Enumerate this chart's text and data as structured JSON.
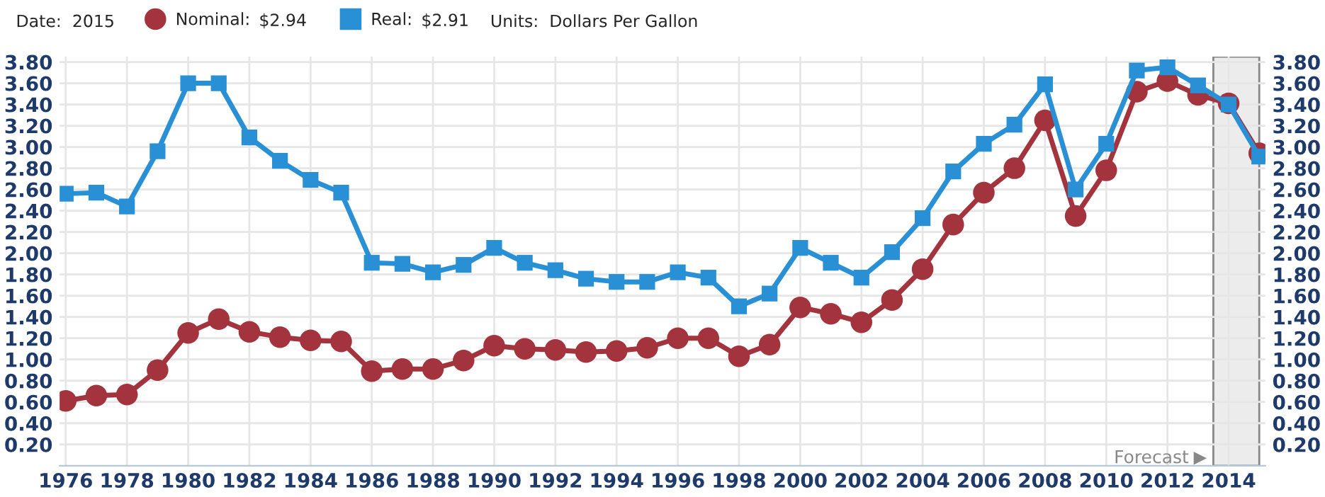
{
  "chart_data": {
    "type": "line",
    "x": [
      1976,
      1977,
      1978,
      1979,
      1980,
      1981,
      1982,
      1983,
      1984,
      1985,
      1986,
      1987,
      1988,
      1989,
      1990,
      1991,
      1992,
      1993,
      1994,
      1995,
      1996,
      1997,
      1998,
      1999,
      2000,
      2001,
      2002,
      2003,
      2004,
      2005,
      2006,
      2007,
      2008,
      2009,
      2010,
      2011,
      2012,
      2013,
      2014,
      2015
    ],
    "series": [
      {
        "name": "Nominal:",
        "color": "#a3333d",
        "marker": "circle",
        "values": [
          0.61,
          0.66,
          0.67,
          0.9,
          1.25,
          1.38,
          1.26,
          1.21,
          1.18,
          1.17,
          0.89,
          0.91,
          0.91,
          0.99,
          1.13,
          1.1,
          1.09,
          1.07,
          1.08,
          1.11,
          1.2,
          1.2,
          1.03,
          1.14,
          1.49,
          1.43,
          1.35,
          1.56,
          1.85,
          2.27,
          2.57,
          2.8,
          3.25,
          2.35,
          2.78,
          3.52,
          3.62,
          3.49,
          3.41,
          2.94
        ]
      },
      {
        "name": "Real:",
        "color": "#2a90d5",
        "marker": "square",
        "values": [
          2.56,
          2.57,
          2.44,
          2.96,
          3.6,
          3.6,
          3.09,
          2.87,
          2.69,
          2.57,
          1.91,
          1.9,
          1.82,
          1.89,
          2.05,
          1.91,
          1.84,
          1.76,
          1.73,
          1.73,
          1.82,
          1.77,
          1.5,
          1.62,
          2.05,
          1.91,
          1.77,
          2.01,
          2.33,
          2.77,
          3.03,
          3.21,
          3.59,
          2.6,
          3.03,
          3.72,
          3.75,
          3.58,
          3.4,
          2.91
        ]
      }
    ],
    "xlim": [
      1975.8,
      2015.2
    ],
    "xticks": [
      1976,
      1978,
      1980,
      1982,
      1984,
      1986,
      1988,
      1990,
      1992,
      1994,
      1996,
      1998,
      2000,
      2002,
      2004,
      2006,
      2008,
      2010,
      2012,
      2014
    ],
    "ylim": [
      0,
      3.85
    ],
    "yticks": [
      {
        "value": 0.2,
        "label": "0.20"
      },
      {
        "value": 0.4,
        "label": "0.40"
      },
      {
        "value": 0.6,
        "label": "0.60"
      },
      {
        "value": 0.8,
        "label": "0.80"
      },
      {
        "value": 1.0,
        "label": "1.00"
      },
      {
        "value": 1.2,
        "label": "1.20"
      },
      {
        "value": 1.4,
        "label": "1.40"
      },
      {
        "value": 1.6,
        "label": "1.60"
      },
      {
        "value": 1.8,
        "label": "1.80"
      },
      {
        "value": 2.0,
        "label": "2.00"
      },
      {
        "value": 2.2,
        "label": "2.20"
      },
      {
        "value": 2.4,
        "label": "2.40"
      },
      {
        "value": 2.6,
        "label": "2.60"
      },
      {
        "value": 2.8,
        "label": "2.80"
      },
      {
        "value": 3.0,
        "label": "3.00"
      },
      {
        "value": 3.2,
        "label": "3.20"
      },
      {
        "value": 3.4,
        "label": "3.40"
      },
      {
        "value": 3.6,
        "label": "3.60"
      },
      {
        "value": 3.8,
        "label": "3.80"
      }
    ],
    "y2lim": [
      0,
      3.85
    ],
    "y2ticks": [
      {
        "value": 0.2,
        "label": "0.20"
      },
      {
        "value": 0.4,
        "label": "0.40"
      },
      {
        "value": 0.6,
        "label": "0.60"
      },
      {
        "value": 0.8,
        "label": "0.80"
      },
      {
        "value": 1.0,
        "label": "1.00"
      },
      {
        "value": 1.2,
        "label": "1.20"
      },
      {
        "value": 1.4,
        "label": "1.40"
      },
      {
        "value": 1.6,
        "label": "1.60"
      },
      {
        "value": 1.8,
        "label": "1.80"
      },
      {
        "value": 2.0,
        "label": "2.00"
      },
      {
        "value": 2.2,
        "label": "2.20"
      },
      {
        "value": 2.4,
        "label": "2.40"
      },
      {
        "value": 2.6,
        "label": "2.60"
      },
      {
        "value": 2.8,
        "label": "2.80"
      },
      {
        "value": 3.0,
        "label": "3.00"
      },
      {
        "value": 3.2,
        "label": "3.20"
      },
      {
        "value": 3.4,
        "label": "3.40"
      },
      {
        "value": 3.6,
        "label": "3.60"
      },
      {
        "value": 3.8,
        "label": "3.80"
      }
    ],
    "bands": [
      {
        "axis": "x",
        "from": 2013.5,
        "to": 2015,
        "label": "Forecast",
        "color": "#ececec"
      }
    ],
    "annotations": [
      "Date:",
      "2015",
      "$2.94",
      "$2.91",
      "Units:",
      "Dollars Per Gallon"
    ],
    "grid": true,
    "legend": "top left",
    "line_style": "solid"
  }
}
